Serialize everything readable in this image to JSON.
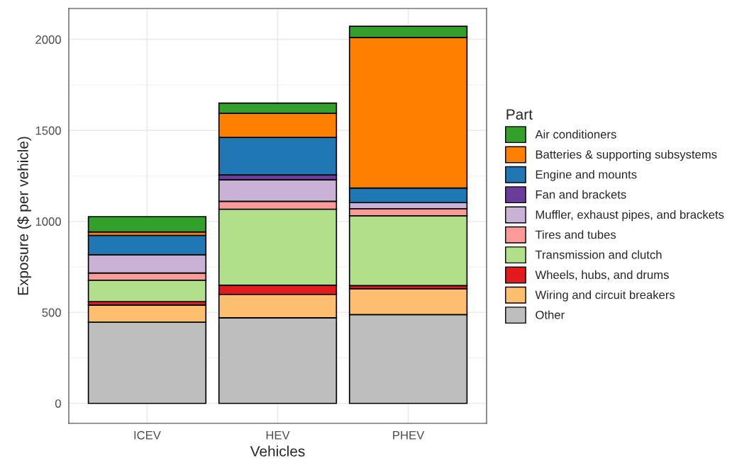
{
  "chart_data": {
    "type": "bar",
    "stacked": true,
    "xlabel": "Vehicles",
    "ylabel": "Exposure ($ per vehicle)",
    "legend_title": "Part",
    "categories": [
      "ICEV",
      "HEV",
      "PHEV"
    ],
    "series": [
      {
        "name": "Other",
        "color": "#bebebe",
        "values": [
          446,
          470,
          488
        ]
      },
      {
        "name": "Wiring and circuit breakers",
        "color": "#fdbf6f",
        "values": [
          94,
          129,
          142
        ]
      },
      {
        "name": "Wheels, hubs, and drums",
        "color": "#e31a1c",
        "values": [
          19,
          50,
          17
        ]
      },
      {
        "name": "Transmission and clutch",
        "color": "#b2df8a",
        "values": [
          118,
          418,
          384
        ]
      },
      {
        "name": "Tires and tubes",
        "color": "#fb9a99",
        "values": [
          39,
          43,
          39
        ]
      },
      {
        "name": "Muffler, exhaust pipes, and brackets",
        "color": "#cab2d6",
        "values": [
          101,
          119,
          33
        ]
      },
      {
        "name": "Fan and brackets",
        "color": "#6a3d9a",
        "values": [
          0,
          26,
          0
        ]
      },
      {
        "name": "Engine and mounts",
        "color": "#1f78b4",
        "values": [
          106,
          207,
          80
        ]
      },
      {
        "name": "Batteries & supporting subsystems",
        "color": "#ff7f00",
        "values": [
          19,
          132,
          828
        ]
      },
      {
        "name": "Air conditioners",
        "color": "#33a02c",
        "values": [
          84,
          56,
          61
        ]
      }
    ],
    "ylim": [
      -110,
      2170
    ],
    "yticks": [
      0,
      500,
      1000,
      1500,
      2000
    ],
    "grid": true,
    "legend": "right"
  }
}
